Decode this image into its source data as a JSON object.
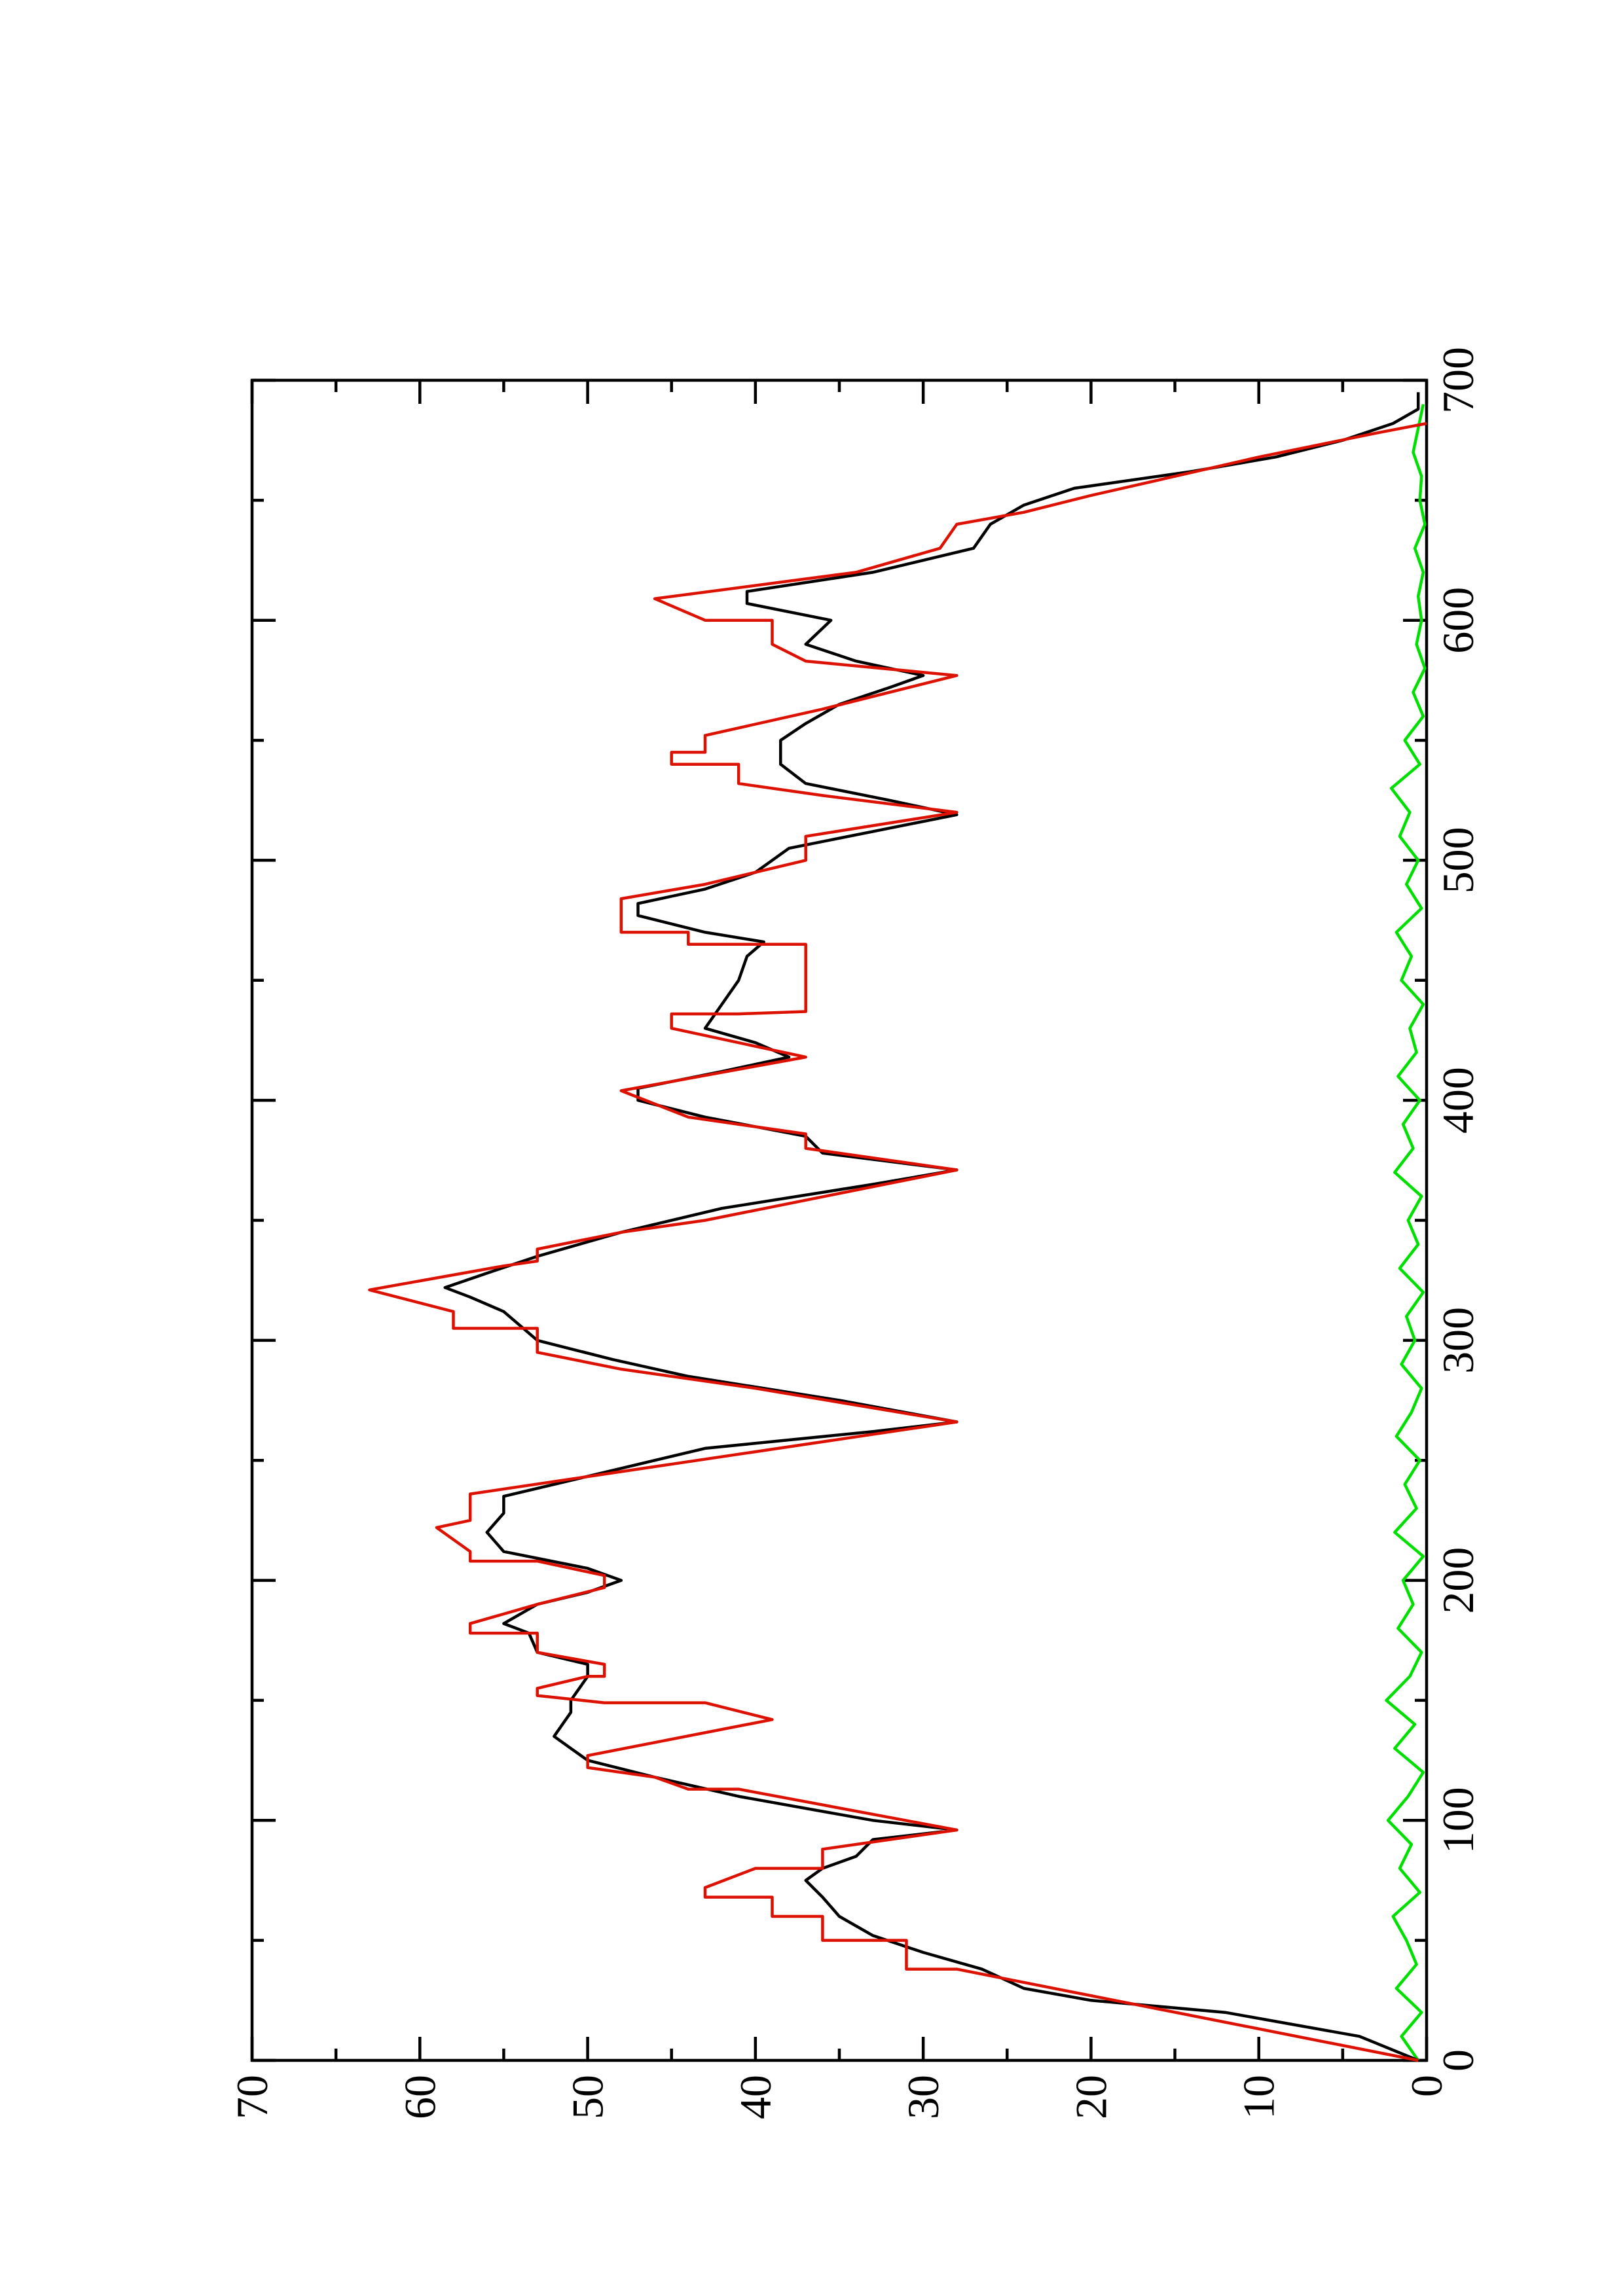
{
  "chart_data": {
    "type": "line",
    "xlim": [
      0,
      700
    ],
    "xticks": [
      0,
      100,
      200,
      300,
      400,
      500,
      600,
      700
    ],
    "xticks_minor": [
      50,
      150,
      250,
      350,
      450,
      550,
      650
    ],
    "ylim": [
      0,
      70
    ],
    "yticks": [
      0,
      10,
      20,
      30,
      40,
      50,
      60,
      70
    ],
    "yticks_minor": [
      5,
      15,
      25,
      35,
      45,
      55,
      65
    ],
    "rotated": true,
    "series": [
      {
        "color": "#00e000",
        "x": [
          0,
          10,
          20,
          30,
          40,
          50,
          60,
          70,
          80,
          90,
          100,
          110,
          120,
          130,
          140,
          150,
          160,
          170,
          180,
          190,
          200,
          210,
          220,
          230,
          240,
          250,
          260,
          270,
          280,
          290,
          300,
          310,
          320,
          330,
          340,
          350,
          360,
          370,
          380,
          390,
          400,
          410,
          420,
          430,
          440,
          450,
          460,
          470,
          480,
          490,
          500,
          510,
          520,
          530,
          540,
          550,
          560,
          570,
          580,
          590,
          600,
          610,
          620,
          630,
          640,
          650,
          660,
          670,
          680,
          690
        ],
        "values": [
          0.5,
          1.5,
          0.3,
          1.8,
          0.6,
          1.2,
          2.0,
          0.4,
          1.6,
          0.9,
          2.3,
          1.1,
          0.2,
          1.9,
          0.7,
          2.4,
          1.0,
          0.3,
          1.7,
          0.8,
          1.4,
          0.2,
          1.9,
          0.6,
          1.3,
          0.4,
          1.8,
          0.9,
          0.3,
          1.5,
          0.7,
          1.2,
          0.2,
          1.6,
          0.5,
          1.1,
          0.3,
          1.9,
          0.8,
          1.4,
          0.4,
          1.7,
          0.6,
          1.0,
          0.2,
          1.5,
          0.9,
          1.8,
          0.3,
          1.2,
          0.5,
          1.6,
          1.0,
          2.1,
          0.4,
          1.3,
          0.2,
          0.8,
          0.1,
          0.6,
          0.3,
          0.5,
          0.2,
          0.7,
          0.1,
          0.4,
          0.3,
          0.8,
          0.5,
          0.2
        ]
      },
      {
        "color": "#000000",
        "x": [
          0,
          10,
          20,
          25,
          30,
          38,
          45,
          52,
          60,
          68,
          75,
          80,
          85,
          92,
          96,
          100,
          110,
          118,
          125,
          130,
          135,
          140,
          145,
          150,
          155,
          160,
          165,
          170,
          178,
          182,
          190,
          195,
          200,
          205,
          212,
          220,
          228,
          235,
          245,
          255,
          262,
          266,
          275,
          285,
          292,
          300,
          306,
          312,
          318,
          322,
          328,
          335,
          345,
          355,
          365,
          371,
          378,
          385,
          393,
          400,
          405,
          412,
          418,
          424,
          430,
          440,
          450,
          460,
          466,
          470,
          477,
          482,
          488,
          495,
          505,
          512,
          519,
          525,
          532,
          540,
          550,
          557,
          565,
          572,
          577,
          583,
          590,
          600,
          607,
          612,
          620,
          630,
          640,
          648,
          655,
          662,
          668,
          675,
          682,
          688,
          695
        ],
        "values": [
          0.5,
          4,
          12,
          20,
          24,
          26.5,
          30,
          33,
          35,
          36,
          37,
          36,
          34,
          33,
          28,
          33,
          41,
          46,
          50,
          51,
          52,
          51.5,
          51,
          51,
          50.5,
          50,
          50,
          53,
          53.5,
          55,
          53,
          50,
          48,
          50,
          55,
          56,
          55,
          55,
          49,
          43,
          33,
          28,
          35,
          44,
          48.5,
          53,
          54,
          55,
          57,
          58.5,
          56,
          53,
          48,
          42,
          33,
          28,
          36,
          37,
          43,
          47,
          47,
          42,
          38,
          40,
          43,
          42,
          41,
          40.5,
          39.5,
          43,
          47,
          47,
          43,
          40,
          38,
          33,
          28,
          32,
          37,
          38.5,
          38.5,
          37,
          35,
          32,
          30,
          34,
          37,
          35.5,
          40.5,
          40.5,
          33,
          27,
          26,
          24,
          21,
          14,
          9,
          5,
          2,
          0.5,
          0.5
        ]
      },
      {
        "color": "#dd1100",
        "x": [
          0,
          38,
          38,
          50,
          50,
          60,
          60,
          68,
          68,
          72,
          80,
          80,
          88,
          96,
          113,
          113,
          118,
          122,
          127,
          142,
          149,
          149,
          152,
          155,
          160,
          160,
          165,
          170,
          178,
          178,
          182,
          190,
          197,
          202,
          208,
          208,
          212,
          222,
          225,
          236,
          266,
          280,
          288,
          295,
          305,
          305,
          312,
          321,
          331,
          333,
          338,
          345,
          350,
          371,
          380,
          386,
          393,
          404,
          418,
          430,
          436,
          436,
          437,
          465,
          465,
          470,
          470,
          480,
          484,
          490,
          500,
          510,
          520,
          527,
          532,
          540,
          540,
          545,
          545,
          552,
          563,
          577,
          583,
          590,
          600,
          600,
          609,
          620,
          630,
          640,
          645,
          652,
          660,
          668,
          678,
          682
        ],
        "values": [
          0.5,
          28,
          31,
          31,
          36,
          36,
          39,
          39,
          43,
          43,
          40,
          36,
          36,
          28,
          41,
          44,
          46,
          50,
          50,
          39,
          43,
          49,
          53,
          53,
          50,
          49,
          49,
          53,
          53,
          57,
          57,
          53,
          49,
          49,
          53,
          57,
          57,
          59,
          57,
          57,
          28,
          40,
          48,
          53,
          53,
          58,
          58,
          63,
          55,
          53,
          53,
          48,
          43,
          28,
          37,
          37,
          44,
          48,
          37,
          45,
          45,
          41,
          37,
          37,
          44,
          44,
          48,
          48,
          48,
          43,
          37,
          37,
          28,
          36,
          41,
          41,
          45,
          45,
          43,
          43,
          36,
          28,
          37,
          39,
          39,
          43,
          46,
          34,
          29,
          28,
          24,
          20,
          15,
          10,
          3,
          0
        ]
      }
    ]
  }
}
